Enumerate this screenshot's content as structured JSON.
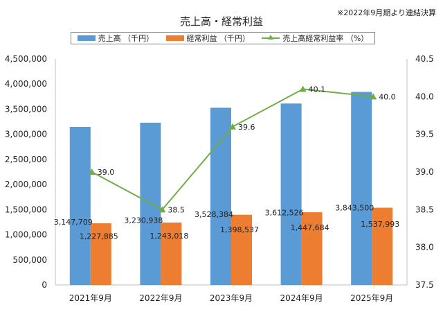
{
  "note": "※2022年9月期より連結決算",
  "colors": {
    "sales": "#5b9bd5",
    "profit": "#ed7d31",
    "margin": "#70ad47"
  },
  "chart_data": {
    "type": "bar",
    "title": "売上高・経常利益",
    "categories": [
      "2021年9月",
      "2022年9月",
      "2023年9月",
      "2024年9月",
      "2025年9月"
    ],
    "series": [
      {
        "name": "売上高 （千円）",
        "type": "bar",
        "axis": "left",
        "values": [
          3147709,
          3230938,
          3528384,
          3612526,
          3843500
        ],
        "labels": [
          "3,147,709",
          "3,230,938",
          "3,528,384",
          "3,612,526",
          "3,843,500"
        ]
      },
      {
        "name": "経常利益 （千円）",
        "type": "bar",
        "axis": "left",
        "values": [
          1227885,
          1243018,
          1398537,
          1447684,
          1537993
        ],
        "labels": [
          "1,227,885",
          "1,243,018",
          "1,398,537",
          "1,447,684",
          "1,537,993"
        ]
      },
      {
        "name": "売上高経常利益率 （%）",
        "type": "line",
        "axis": "right",
        "values": [
          39.0,
          38.5,
          39.6,
          40.1,
          40.0
        ],
        "labels": [
          "39.0",
          "38.5",
          "39.6",
          "40.1",
          "40.0"
        ]
      }
    ],
    "ylim": [
      0,
      4500000
    ],
    "y_ticks": [
      "0",
      "500,000",
      "1,000,000",
      "1,500,000",
      "2,000,000",
      "2,500,000",
      "3,000,000",
      "3,500,000",
      "4,000,000",
      "4,500,000"
    ],
    "y2lim": [
      37.5,
      40.5
    ],
    "y2_ticks": [
      "37.5",
      "38.0",
      "38.5",
      "39.0",
      "39.5",
      "40.0",
      "40.5"
    ],
    "legend": "top",
    "grid": false
  }
}
